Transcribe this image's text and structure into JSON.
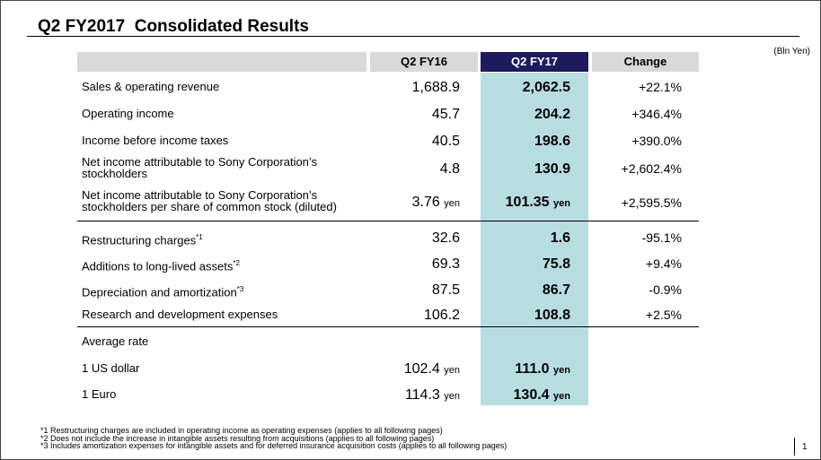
{
  "slide": {
    "title": "Q2 FY2017  Consolidated Results",
    "unit": "(Bln Yen)",
    "page_number": "1"
  },
  "table": {
    "columns": [
      "Q2 FY16",
      "Q2 FY17",
      "Change"
    ],
    "rows": [
      {
        "label": "Sales & operating revenue",
        "fy16": "1,688.9",
        "fy17": "2,062.5",
        "change": "+22.1%"
      },
      {
        "label": "Operating income",
        "fy16": "45.7",
        "fy17": "204.2",
        "change": "+346.4%"
      },
      {
        "label": "Income before income taxes",
        "fy16": "40.5",
        "fy17": "198.6",
        "change": "+390.0%"
      },
      {
        "label_line1": "Net income attributable to Sony Corporation’s",
        "label_line2": "stockholders",
        "fy16": "4.8",
        "fy17": "130.9",
        "change": "+2,602.4%"
      },
      {
        "label_line1": "Net income attributable to Sony Corporation’s",
        "label_line2": "stockholders per share of common stock (diluted)",
        "fy16": "3.76",
        "fy16_unit": "yen",
        "fy17": "101.35",
        "fy17_unit": "yen",
        "change": "+2,595.5%"
      },
      {
        "label": "Restructuring charges",
        "mark": "*1",
        "fy16": "32.6",
        "fy17": "1.6",
        "change": "-95.1%"
      },
      {
        "label": "Additions to long-lived assets",
        "mark": "*2",
        "fy16": "69.3",
        "fy17": "75.8",
        "change": "+9.4%"
      },
      {
        "label": "Depreciation and amortization",
        "mark": "*3",
        "fy16": "87.5",
        "fy17": "86.7",
        "change": "-0.9%"
      },
      {
        "label": "Research and development expenses",
        "fy16": "106.2",
        "fy17": "108.8",
        "change": "+2.5%"
      },
      {
        "label": "Average rate"
      },
      {
        "label": "1 US dollar",
        "fy16": "102.4",
        "fy16_unit": "yen",
        "fy17": "111.0",
        "fy17_unit": "yen"
      },
      {
        "label": "1 Euro",
        "fy16": "114.3",
        "fy16_unit": "yen",
        "fy17": "130.4",
        "fy17_unit": "yen"
      }
    ]
  },
  "footnotes": [
    "*1 Restructuring charges are included in operating income as operating expenses (applies to all following pages)",
    "*2 Does not include the increase in intangible assets resulting from acquisitions (applies to all following pages)",
    "*3 Includes amortization expenses for intangible assets and for deferred insurance acquisition costs (applies to all following pages)"
  ]
}
